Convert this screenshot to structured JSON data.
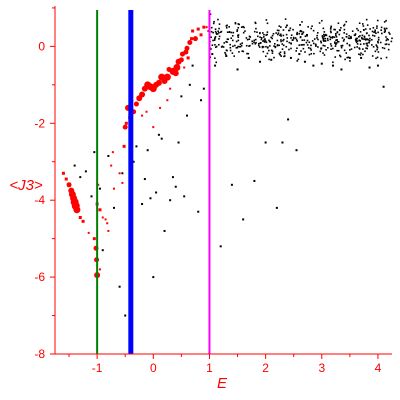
{
  "chart_data": {
    "type": "scatter",
    "title": "",
    "xlabel": "E",
    "ylabel": "<J3>",
    "xlim": [
      -1.75,
      4.25
    ],
    "ylim": [
      -8,
      1.05
    ],
    "grid": false,
    "x_ticks": [
      -1,
      0,
      1,
      2,
      3,
      4
    ],
    "x_tick_labels": [
      "-1",
      "0",
      "1",
      "2",
      "3",
      "4"
    ],
    "y_ticks": [
      -8,
      -6,
      -4,
      -2,
      0
    ],
    "y_tick_labels": [
      "-8",
      "-6",
      "-4",
      "-2",
      "0"
    ],
    "axis_color": "#ff0000",
    "vertical_lines": [
      {
        "x": -1.0,
        "color": "#008000"
      },
      {
        "x": -0.4,
        "color": "#0000ff"
      },
      {
        "x": 1.0,
        "color": "#ff00ff"
      }
    ],
    "series": [
      {
        "color": "#ff0000",
        "points": [
          [
            -1.6,
            -3.3
          ],
          [
            -1.55,
            -3.45
          ],
          [
            -1.5,
            -3.6
          ],
          [
            -1.46,
            -3.75
          ],
          [
            -1.44,
            -3.85
          ],
          [
            -1.42,
            -3.95
          ],
          [
            -1.4,
            -4.05
          ],
          [
            -1.38,
            -4.15
          ],
          [
            -1.36,
            -4.25
          ],
          [
            -1.3,
            -4.45
          ],
          [
            -1.25,
            -4.55
          ],
          [
            -1.15,
            -4.85
          ],
          [
            -1.05,
            -5.0
          ],
          [
            -1.02,
            -5.25
          ],
          [
            -1.01,
            -5.55
          ],
          [
            -1.0,
            -5.95
          ],
          [
            -0.95,
            -5.8
          ],
          [
            -1.0,
            -4.1
          ],
          [
            -0.98,
            -3.6
          ],
          [
            -0.95,
            -4.25
          ],
          [
            -0.9,
            -4.45
          ],
          [
            -0.85,
            -4.5
          ],
          [
            -0.82,
            -4.6
          ],
          [
            -0.8,
            -4.8
          ],
          [
            -0.75,
            -3.1
          ],
          [
            -0.72,
            -2.75
          ],
          [
            -0.7,
            -3.7
          ],
          [
            -0.6,
            -3.3
          ],
          [
            -0.55,
            -3.55
          ],
          [
            -0.52,
            -2.6
          ],
          [
            -0.5,
            -2.1
          ],
          [
            -0.48,
            -2.0
          ],
          [
            -0.45,
            -1.6
          ],
          [
            -0.42,
            -1.85
          ],
          [
            -0.4,
            -2.15
          ],
          [
            -0.35,
            -1.7
          ],
          [
            -0.3,
            -1.5
          ],
          [
            -0.25,
            -1.35
          ],
          [
            -0.2,
            -1.25
          ],
          [
            -0.15,
            -1.1
          ],
          [
            -0.12,
            -1.7
          ],
          [
            -0.1,
            -1.0
          ],
          [
            -0.05,
            -1.05
          ],
          [
            0.0,
            -1.1
          ],
          [
            0.05,
            -1.0
          ],
          [
            0.1,
            -0.95
          ],
          [
            0.12,
            -1.6
          ],
          [
            0.15,
            -0.8
          ],
          [
            0.2,
            -0.9
          ],
          [
            0.25,
            -0.8
          ],
          [
            0.28,
            -0.6
          ],
          [
            0.3,
            -1.1
          ],
          [
            0.35,
            -0.65
          ],
          [
            0.4,
            -0.7
          ],
          [
            0.42,
            -0.55
          ],
          [
            0.45,
            -0.4
          ],
          [
            0.5,
            -0.35
          ],
          [
            0.52,
            -0.2
          ],
          [
            0.55,
            -0.55
          ],
          [
            0.58,
            -0.15
          ],
          [
            0.6,
            -0.05
          ],
          [
            0.62,
            -0.3
          ],
          [
            0.65,
            0.1
          ],
          [
            0.68,
            0.2
          ],
          [
            0.7,
            0.4
          ],
          [
            0.75,
            0.2
          ],
          [
            0.8,
            0.45
          ],
          [
            0.85,
            0.3
          ],
          [
            0.9,
            0.5
          ],
          [
            0.95,
            0.5
          ],
          [
            0.98,
            0.4
          ],
          [
            0.25,
            -1.4
          ],
          [
            0.0,
            -2.1
          ],
          [
            -0.2,
            -1.8
          ]
        ],
        "sizes": [
          3,
          3,
          4,
          5,
          6,
          6,
          7,
          7,
          6,
          3,
          3,
          2,
          3,
          4,
          4,
          5,
          2,
          3,
          2,
          3,
          2,
          2,
          2,
          2,
          2,
          2,
          2,
          2,
          2,
          3,
          4,
          3,
          5,
          3,
          2,
          4,
          4,
          5,
          5,
          5,
          2,
          6,
          6,
          6,
          5,
          5,
          2,
          6,
          5,
          6,
          4,
          2,
          6,
          5,
          6,
          5,
          4,
          4,
          2,
          4,
          4,
          3,
          4,
          3,
          3,
          4,
          3,
          3,
          3,
          2,
          2,
          2,
          2,
          2
        ]
      },
      {
        "color": "#000000",
        "points": [
          [
            -1.4,
            -3.1
          ],
          [
            -1.3,
            -3.4
          ],
          [
            -1.2,
            -3.25
          ],
          [
            -1.1,
            -3.9
          ],
          [
            -1.05,
            -2.75
          ],
          [
            -0.95,
            -3.7
          ],
          [
            -0.9,
            -5.3
          ],
          [
            -0.8,
            -2.85
          ],
          [
            -0.7,
            -4.2
          ],
          [
            -0.6,
            -6.25
          ],
          [
            -0.5,
            -7.0
          ],
          [
            -0.55,
            -3.3
          ],
          [
            -0.4,
            -4.4
          ],
          [
            -0.35,
            -3.0
          ],
          [
            -0.3,
            -2.6
          ],
          [
            -0.2,
            -4.1
          ],
          [
            -0.15,
            -3.45
          ],
          [
            -0.1,
            -2.7
          ],
          [
            -0.05,
            -3.95
          ],
          [
            0.0,
            -6.0
          ],
          [
            0.05,
            -3.8
          ],
          [
            0.1,
            -2.3
          ],
          [
            0.15,
            -2.4
          ],
          [
            0.2,
            -4.8
          ],
          [
            0.3,
            -4.0
          ],
          [
            0.35,
            -3.4
          ],
          [
            0.4,
            -3.65
          ],
          [
            0.45,
            -2.5
          ],
          [
            0.5,
            -1.3
          ],
          [
            0.55,
            -3.9
          ],
          [
            0.6,
            -1.8
          ],
          [
            0.65,
            -1.0
          ],
          [
            0.7,
            -0.5
          ],
          [
            0.8,
            -4.3
          ],
          [
            0.85,
            -1.4
          ],
          [
            0.9,
            -1.1
          ],
          [
            1.05,
            -0.2
          ],
          [
            1.1,
            -0.5
          ],
          [
            1.2,
            -5.2
          ],
          [
            1.3,
            -0.25
          ],
          [
            1.4,
            -3.6
          ],
          [
            1.5,
            -0.6
          ],
          [
            1.6,
            -4.5
          ],
          [
            1.7,
            -0.3
          ],
          [
            1.8,
            -3.5
          ],
          [
            1.9,
            -0.4
          ],
          [
            2.0,
            -2.5
          ],
          [
            2.1,
            -0.35
          ],
          [
            2.2,
            -4.2
          ],
          [
            2.3,
            -2.5
          ],
          [
            2.4,
            -1.9
          ],
          [
            2.45,
            -0.3
          ],
          [
            2.55,
            -2.7
          ],
          [
            2.6,
            -0.2
          ],
          [
            2.7,
            -0.4
          ],
          [
            2.85,
            -0.5
          ],
          [
            3.0,
            -0.45
          ],
          [
            3.2,
            -0.5
          ],
          [
            3.35,
            -0.6
          ],
          [
            3.5,
            -0.3
          ],
          [
            3.7,
            -0.3
          ],
          [
            3.85,
            -0.55
          ],
          [
            4.0,
            -0.5
          ],
          [
            4.1,
            -1.05
          ]
        ],
        "sizes": [
          2
        ]
      }
    ],
    "dense_black_band": {
      "x_range": [
        1.0,
        4.25
      ],
      "y_center": 0.15,
      "y_spread": 0.45
    }
  }
}
